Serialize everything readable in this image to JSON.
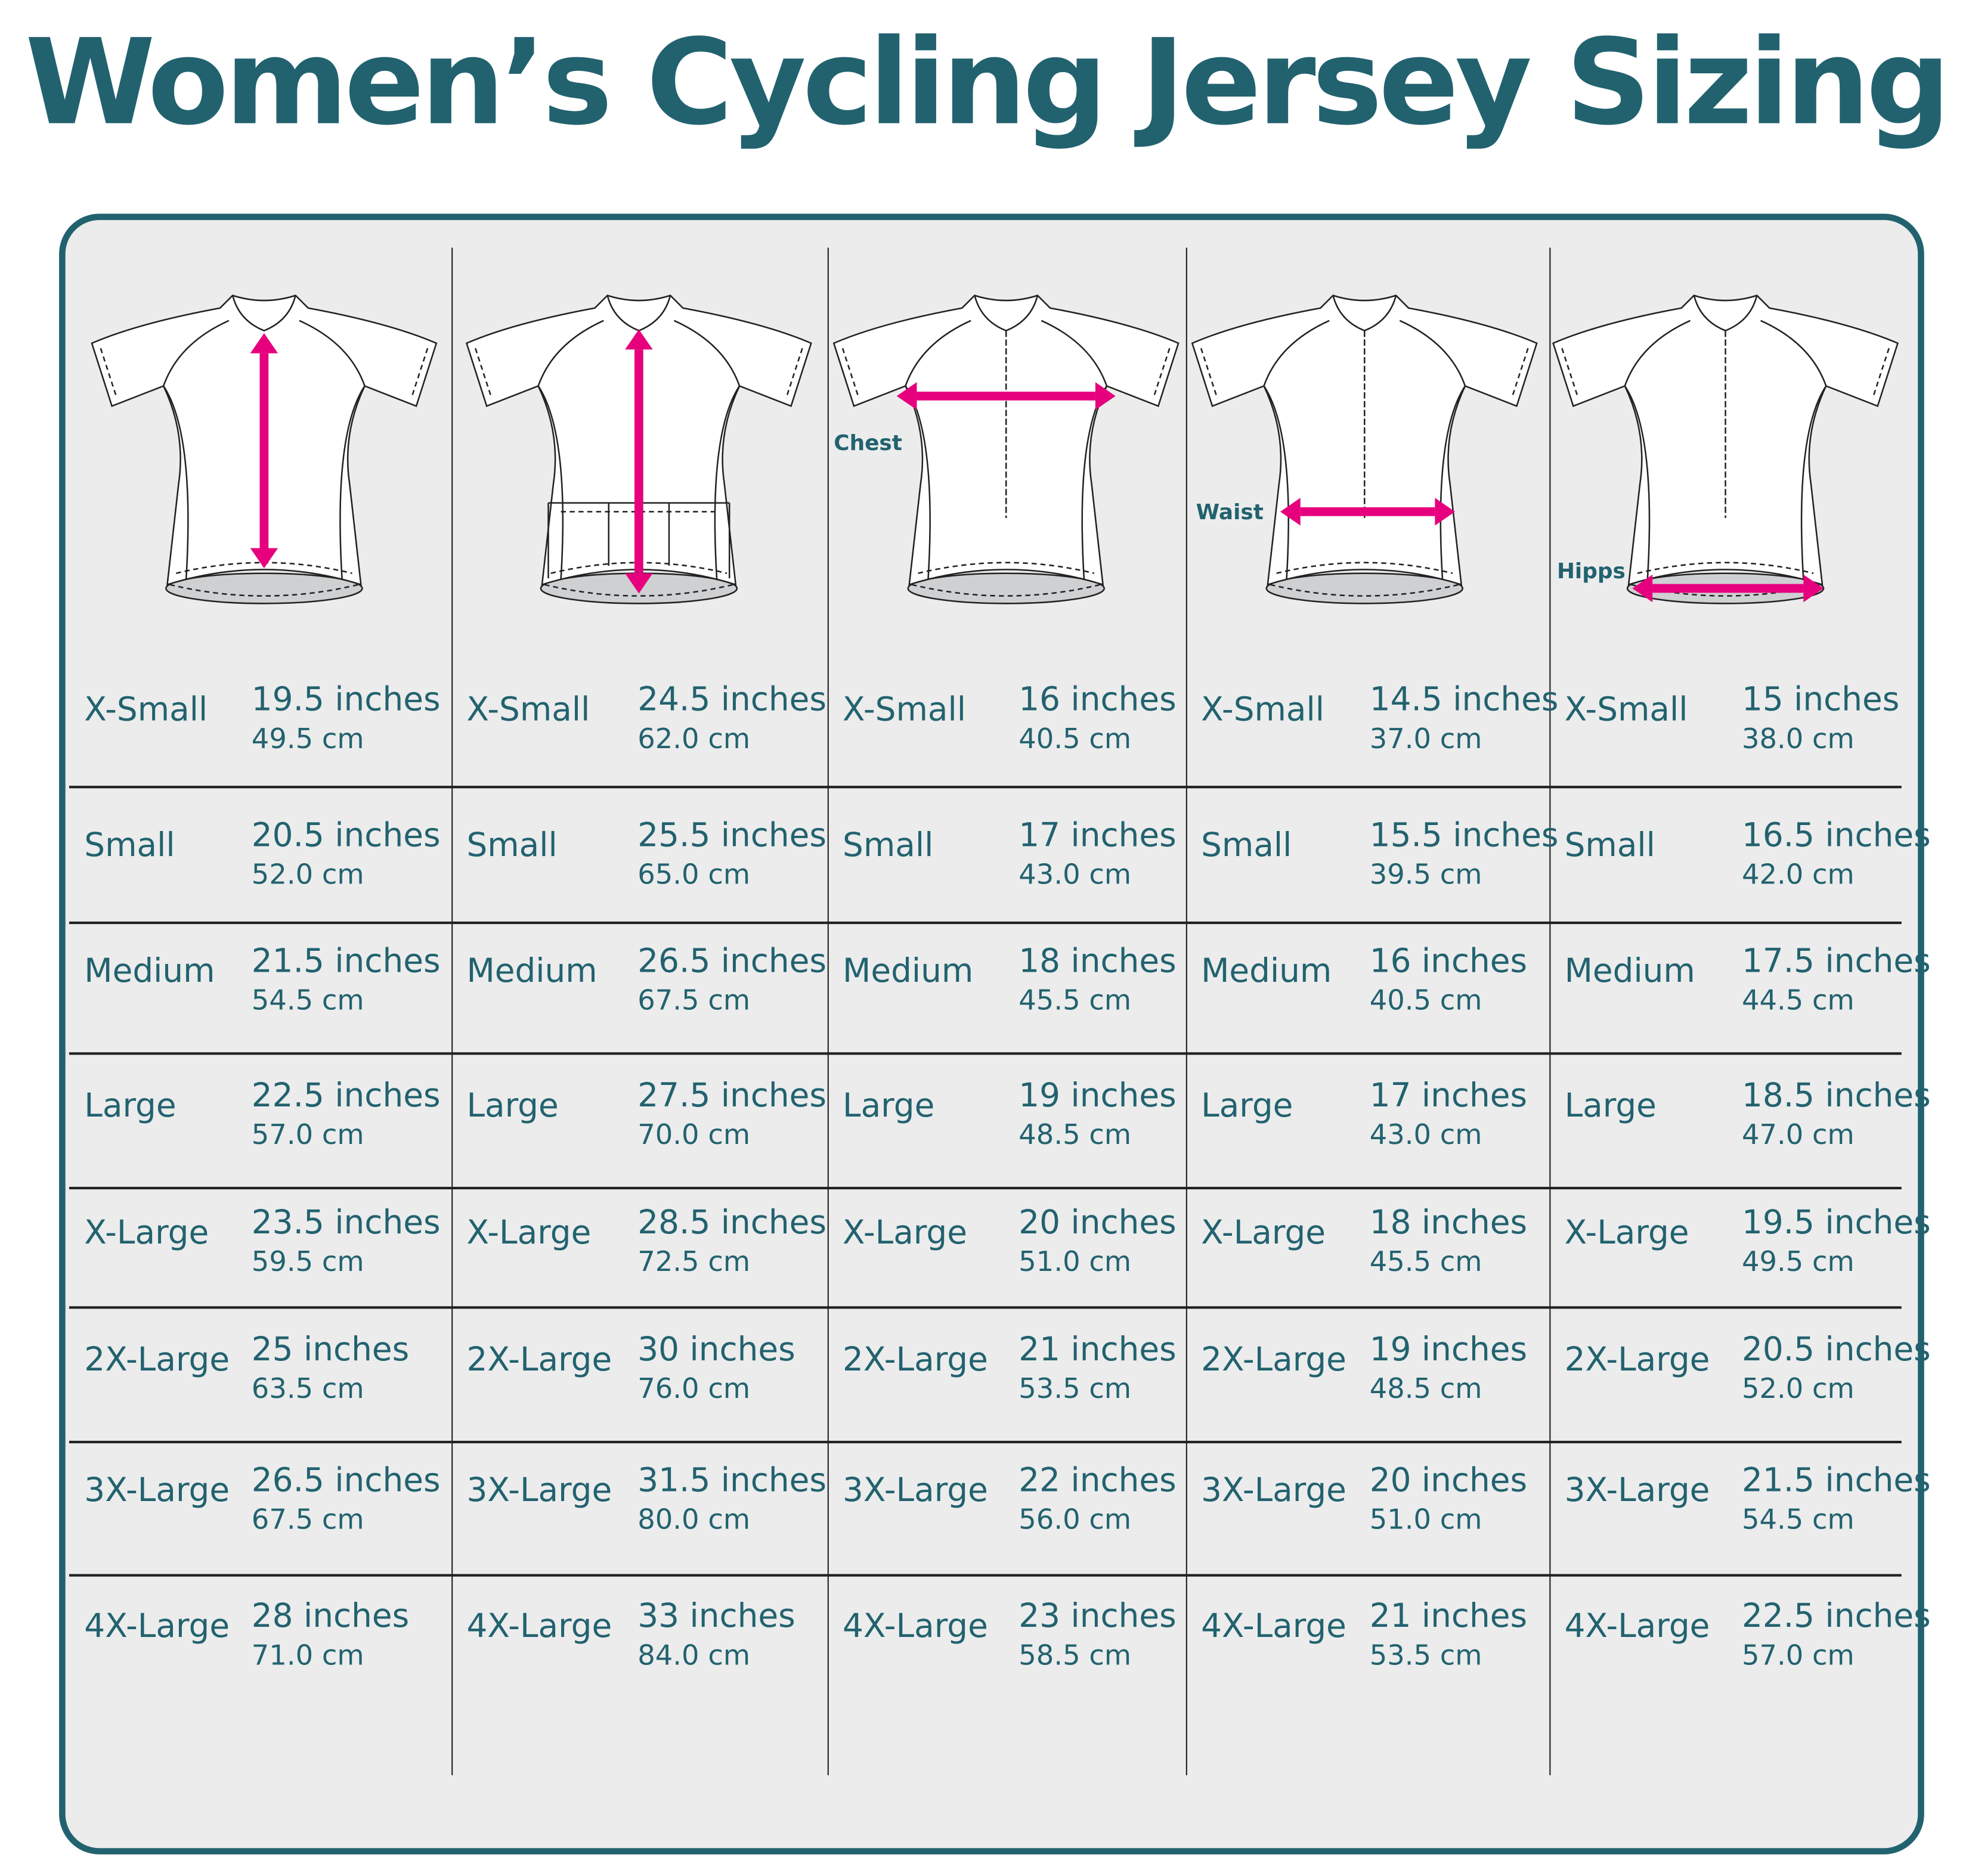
{
  "title": "Women’s Cycling  Jersey Sizing",
  "colors": {
    "text": "#22626f",
    "arrow": "#e6007e",
    "panel": "#ececec",
    "border": "#22626f"
  },
  "sizes": [
    "X-Small",
    "Small",
    "Medium",
    "Large",
    "X-Large",
    "2X-Large",
    "3X-Large",
    "4X-Large"
  ],
  "columns": [
    {
      "measurement_label": "",
      "view": "front",
      "arrow": "vertical",
      "values": [
        [
          "19.5 inches",
          "49.5 cm"
        ],
        [
          "20.5 inches",
          "52.0 cm"
        ],
        [
          "21.5 inches",
          "54.5 cm"
        ],
        [
          "22.5 inches",
          "57.0 cm"
        ],
        [
          "23.5 inches",
          "59.5 cm"
        ],
        [
          "25 inches",
          "63.5 cm"
        ],
        [
          "26.5 inches",
          "67.5 cm"
        ],
        [
          "28 inches",
          "71.0 cm"
        ]
      ]
    },
    {
      "measurement_label": "",
      "view": "back",
      "arrow": "vertical",
      "values": [
        [
          "24.5 inches",
          "62.0 cm"
        ],
        [
          "25.5 inches",
          "65.0 cm"
        ],
        [
          "26.5 inches",
          "67.5 cm"
        ],
        [
          "27.5 inches",
          "70.0 cm"
        ],
        [
          "28.5 inches",
          "72.5 cm"
        ],
        [
          "30 inches",
          "76.0 cm"
        ],
        [
          "31.5 inches",
          "80.0 cm"
        ],
        [
          "33 inches",
          "84.0 cm"
        ]
      ]
    },
    {
      "measurement_label": "Chest",
      "view": "front",
      "arrow": "horizontal",
      "values": [
        [
          "16 inches",
          "40.5 cm"
        ],
        [
          "17 inches",
          "43.0 cm"
        ],
        [
          "18 inches",
          "45.5 cm"
        ],
        [
          "19 inches",
          "48.5 cm"
        ],
        [
          "20 inches",
          "51.0 cm"
        ],
        [
          "21 inches",
          "53.5 cm"
        ],
        [
          "22 inches",
          "56.0 cm"
        ],
        [
          "23 inches",
          "58.5 cm"
        ]
      ]
    },
    {
      "measurement_label": "Waist",
      "view": "front",
      "arrow": "horizontal",
      "values": [
        [
          "14.5 inches",
          "37.0 cm"
        ],
        [
          "15.5 inches",
          "39.5 cm"
        ],
        [
          "16 inches",
          "40.5 cm"
        ],
        [
          "17 inches",
          "43.0 cm"
        ],
        [
          "18 inches",
          "45.5 cm"
        ],
        [
          "19 inches",
          "48.5 cm"
        ],
        [
          "20 inches",
          "51.0 cm"
        ],
        [
          "21 inches",
          "53.5 cm"
        ]
      ]
    },
    {
      "measurement_label": "Hipps",
      "view": "front",
      "arrow": "horizontal",
      "values": [
        [
          "15 inches",
          "38.0 cm"
        ],
        [
          "16.5 inches",
          "42.0 cm"
        ],
        [
          "17.5 inches",
          "44.5 cm"
        ],
        [
          "18.5 inches",
          "47.0 cm"
        ],
        [
          "19.5 inches",
          "49.5 cm"
        ],
        [
          "20.5 inches",
          "52.0 cm"
        ],
        [
          "21.5 inches",
          "54.5 cm"
        ],
        [
          "22.5 inches",
          "57.0 cm"
        ]
      ]
    }
  ]
}
